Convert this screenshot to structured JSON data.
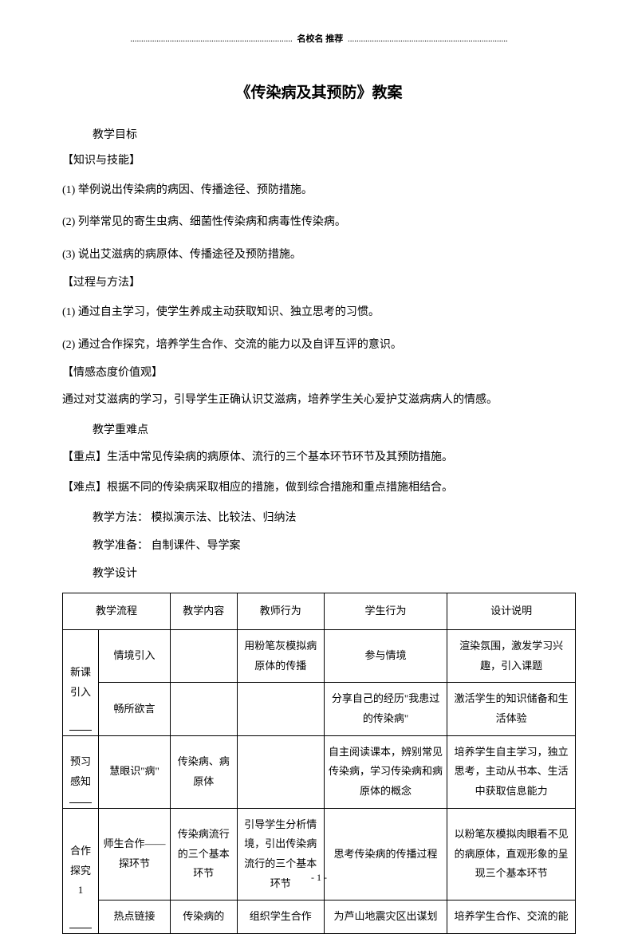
{
  "header": {
    "dots_left": "..........................................................................",
    "label": "名校名 推荐",
    "dots_right": "........................................................................."
  },
  "title": "《传染病及其预防》教案",
  "sections": {
    "goal_label": "教学目标",
    "knowledge_skill": "【知识与技能】",
    "ks_items": [
      "(1) 举例说出传染病的病因、传播途径、预防措施。",
      "(2) 列举常见的寄生虫病、细菌性传染病和病毒性传染病。",
      "(3) 说出艾滋病的病原体、传播途径及预防措施。"
    ],
    "process_method": "【过程与方法】",
    "pm_items": [
      "(1) 通过自主学习，使学生养成主动获取知识、独立思考的习惯。",
      "(2) 通过合作探究，培养学生合作、交流的能力以及自评互评的意识。"
    ],
    "emotion": "【情感态度价值观】",
    "emotion_text": "通过对艾滋病的学习，引导学生正确认识艾滋病，培养学生关心爱护艾滋病病人的情感。",
    "difficulty_label": "教学重难点",
    "key_point": "【重点】生活中常见传染病的病原体、流行的三个基本环节环节及其预防措施。",
    "hard_point": "【难点】根据不同的传染病采取相应的措施，做到综合措施和重点措施相结合。",
    "method_label": "教学方法：",
    "method_text": " 模拟演示法、比较法、归纳法",
    "prep_label": "教学准备：",
    "prep_text": " 自制课件、导学案",
    "design_label": "教学设计"
  },
  "table": {
    "headers": [
      "教学流程",
      "教学内容",
      "教师行为",
      "学生行为",
      "设计说明"
    ],
    "rows": [
      {
        "flow_main": "新课引入",
        "flow_sub": "情境引入",
        "content": "",
        "teacher": "用粉笔灰模拟病原体的传播",
        "student": "参与情境",
        "design": "渲染氛围，激发学习兴趣，引入课题"
      },
      {
        "flow_sub": "畅所欲言",
        "content": "",
        "teacher": "",
        "student": "分享自己的经历\"我患过的传染病\"",
        "design": "激活学生的知识储备和生活体验"
      },
      {
        "flow_main": "预习感知",
        "flow_sub": "慧眼识\"病\"",
        "content": "传染病、病原体",
        "teacher": "",
        "student": "自主阅读课本，辨别常见传染病，学习传染病和病原体的概念",
        "design": "培养学生自主学习，独立思考，主动从书本、生活中获取信息能力"
      },
      {
        "flow_main": "合作探究 1",
        "flow_sub": "师生合作——探环节",
        "content": "传染病流行的三个基本环节",
        "teacher": "引导学生分析情境，引出传染病流行的三个基本环节",
        "student": "思考传染病的传播过程",
        "design": "以粉笔灰模拟肉眼看不见的病原体，直观形象的呈现三个基本环节"
      },
      {
        "flow_sub": "热点链接",
        "content": "传染病的",
        "teacher": "组织学生合作",
        "student": "为芦山地震灾区出谋划",
        "design": "培养学生合作、交流的能"
      }
    ]
  },
  "footer": "- 1 -"
}
